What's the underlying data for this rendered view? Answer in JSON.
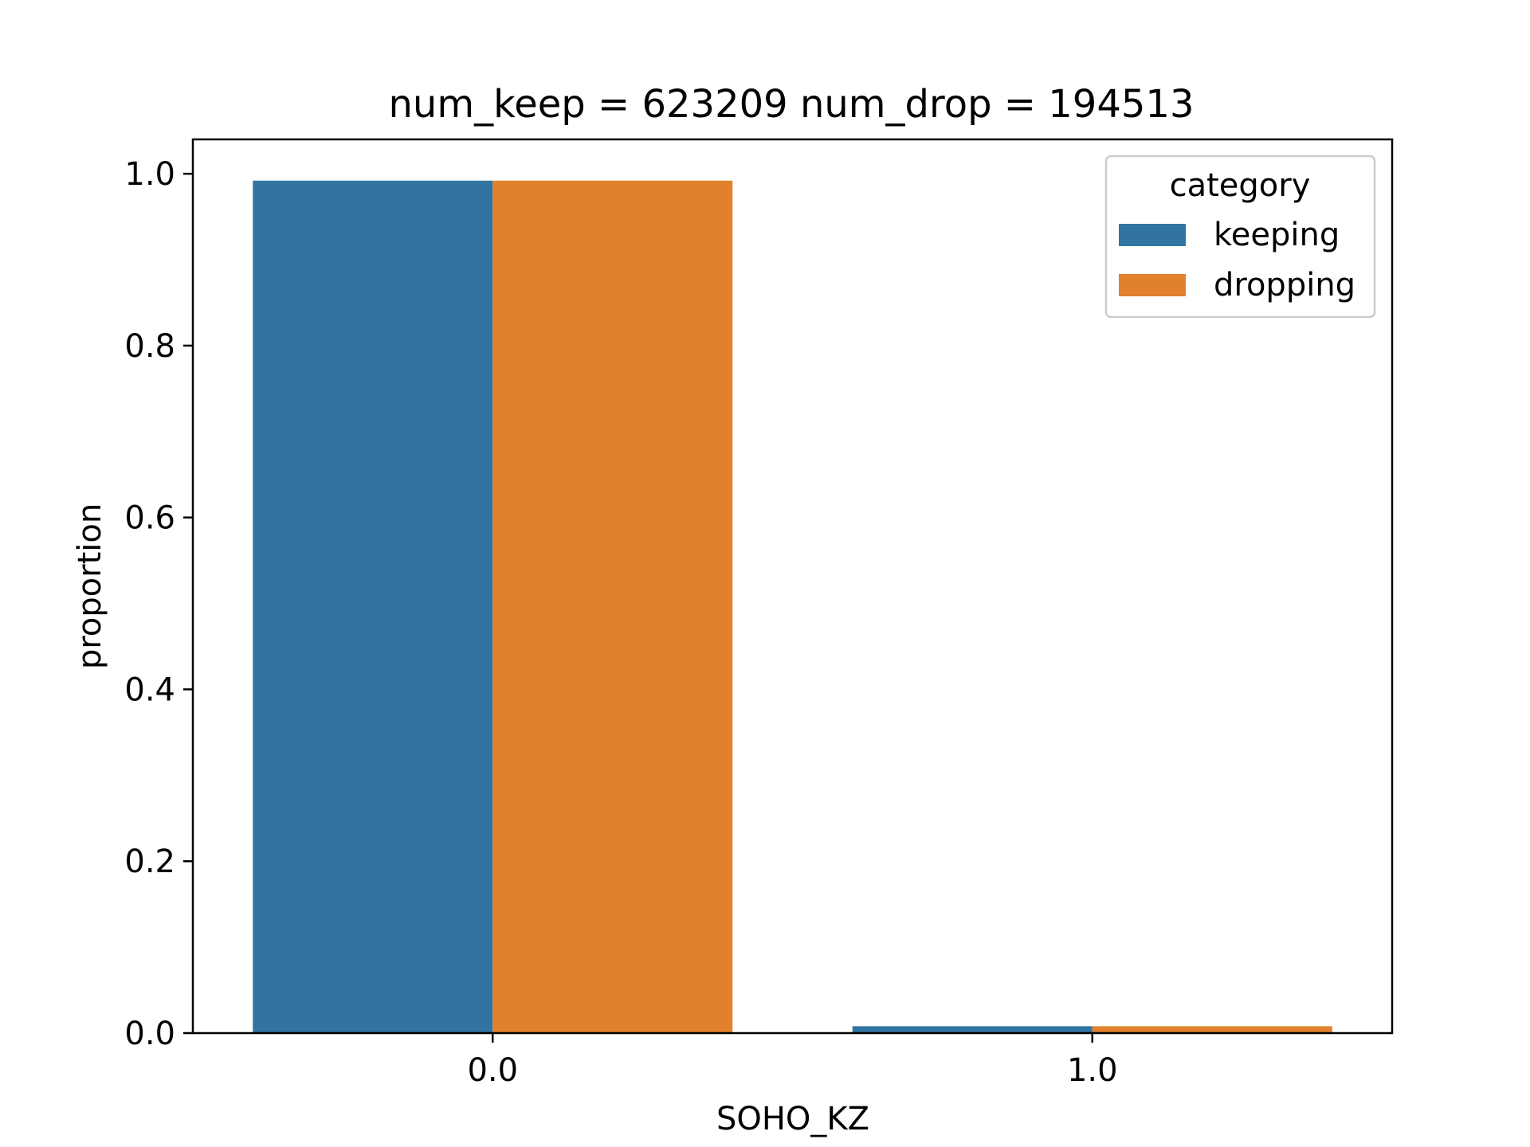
{
  "chart_data": {
    "type": "bar",
    "title": "num_keep = 623209  num_drop = 194513",
    "xlabel": "SOHO_KZ",
    "ylabel": "proportion",
    "categories": [
      "0.0",
      "1.0"
    ],
    "series": [
      {
        "name": "keeping",
        "values": [
          0.992,
          0.008
        ],
        "color": "#3274a1"
      },
      {
        "name": "dropping",
        "values": [
          0.992,
          0.008
        ],
        "color": "#e1812c"
      }
    ],
    "ylim": [
      0,
      1.04
    ],
    "yticks": [
      "0.0",
      "0.2",
      "0.4",
      "0.6",
      "0.8",
      "1.0"
    ],
    "grid": false,
    "legend": {
      "title": "category",
      "placement": "top-right"
    }
  }
}
